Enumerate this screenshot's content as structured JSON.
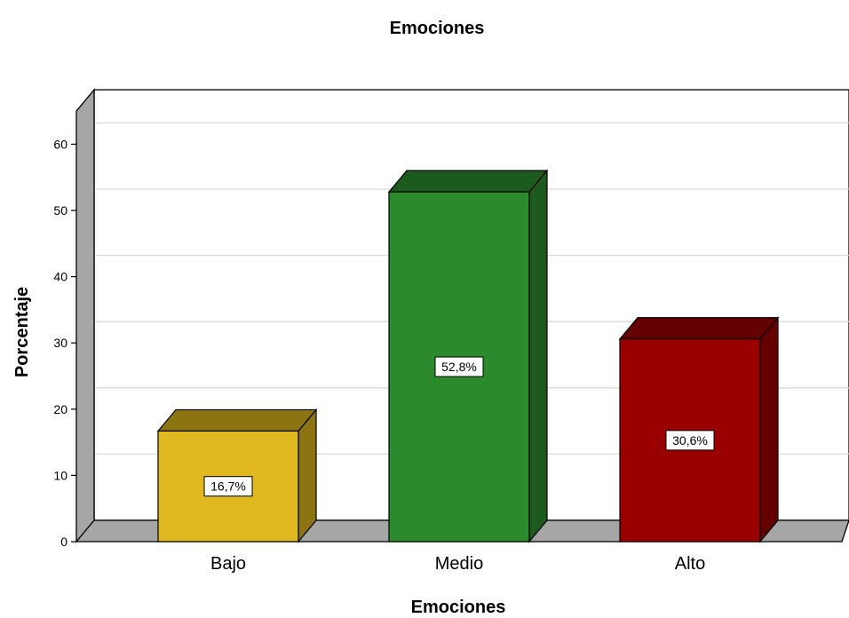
{
  "chart_data": {
    "type": "bar",
    "title": "Emociones",
    "xlabel": "Emociones",
    "ylabel": "Porcentaje",
    "categories": [
      "Bajo",
      "Medio",
      "Alto"
    ],
    "values": [
      16.7,
      52.8,
      30.6
    ],
    "data_labels": [
      "16,7%",
      "52,8%",
      "30,6%"
    ],
    "ylim": [
      0,
      60
    ],
    "yticks": [
      "0",
      "10",
      "20",
      "30",
      "40",
      "50",
      "60"
    ],
    "grid": true,
    "style": "3d",
    "colors": {
      "bars": [
        "#e0b820",
        "#2a8a2c",
        "#9a0000"
      ],
      "bar_tops": [
        "#8c7412",
        "#1d5a1d",
        "#640000"
      ],
      "bar_sides": [
        "#8c7412",
        "#1d5a1d",
        "#640000"
      ],
      "grid": "#d9d9d9",
      "floor": "#a6a6a6",
      "wall": "#a6a6a6"
    }
  }
}
